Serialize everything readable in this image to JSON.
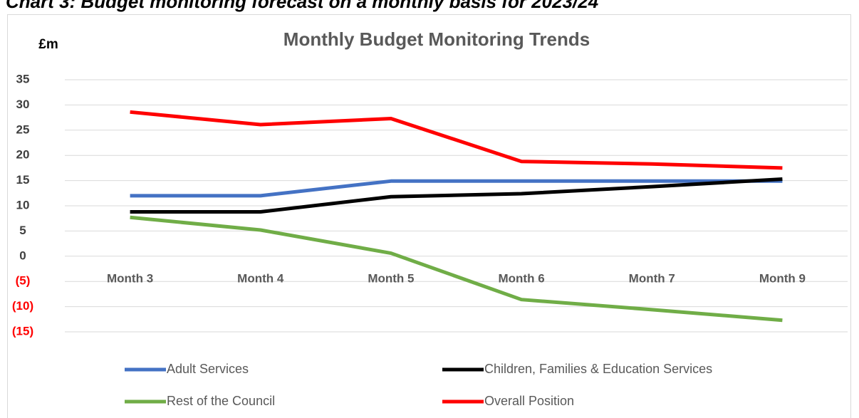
{
  "heading": "Chart 3: Budget monitoring forecast on a monthly basis for 2023/24",
  "chart_data": {
    "type": "line",
    "title": "Monthly Budget Monitoring Trends",
    "y_label": "£m",
    "categories": [
      "Month 3",
      "Month 4",
      "Month 5",
      "Month 6",
      "Month 7",
      "Month 9"
    ],
    "series": [
      {
        "name": "Adult Services",
        "color": "#4472c4",
        "values": [
          12,
          12,
          14.9,
          14.9,
          14.9,
          14.9
        ]
      },
      {
        "name": "Children, Families & Education Services",
        "color": "#000000",
        "values": [
          8.8,
          8.8,
          11.8,
          12.4,
          13.8,
          15.3
        ]
      },
      {
        "name": "Rest of the Council",
        "color": "#70ad47",
        "values": [
          7.7,
          5.2,
          0.6,
          -8.6,
          -10.6,
          -12.7
        ]
      },
      {
        "name": "Overall Position",
        "color": "#ff0000",
        "values": [
          28.6,
          26.1,
          27.3,
          18.8,
          18.3,
          17.5
        ]
      }
    ],
    "ylim": [
      -15,
      35
    ],
    "yticks": [
      {
        "value": -15,
        "label": "(15)"
      },
      {
        "value": -10,
        "label": "(10)"
      },
      {
        "value": -5,
        "label": "(5)"
      },
      0,
      5,
      10,
      15,
      20,
      25,
      30,
      35
    ],
    "grid": true,
    "legend": "bottom"
  }
}
